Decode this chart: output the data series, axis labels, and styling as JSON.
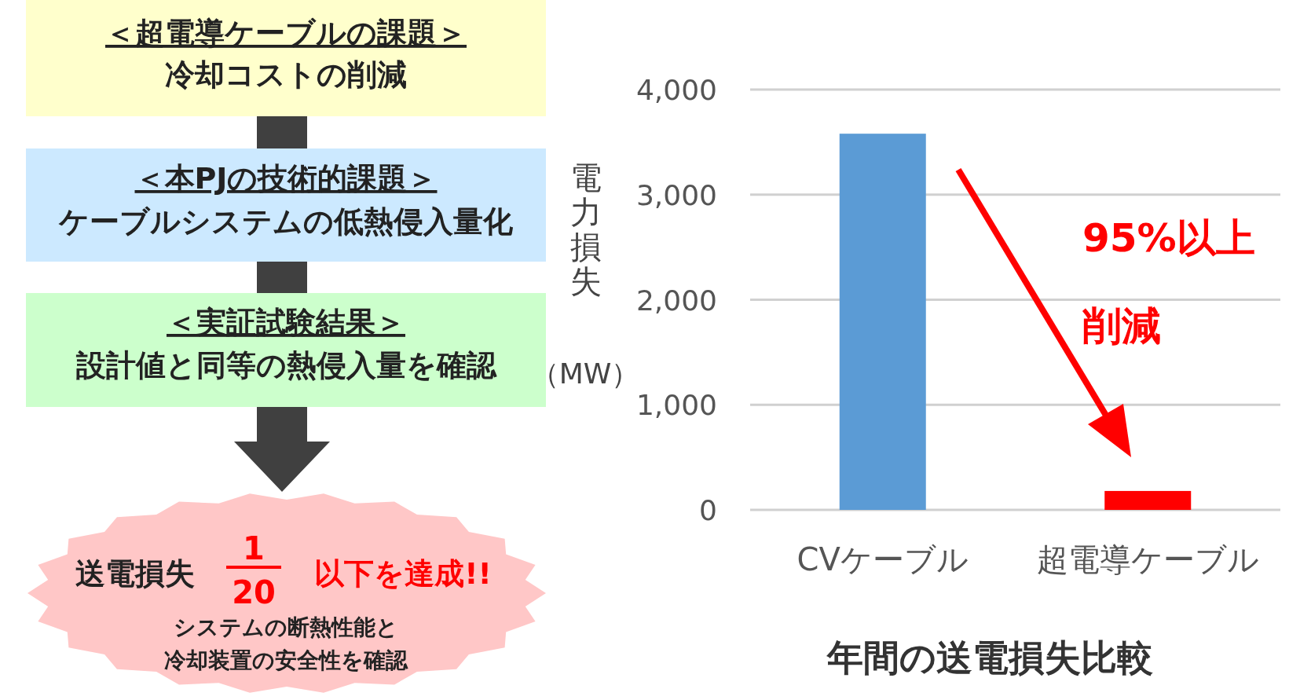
{
  "chart_data": [
    {
      "type": "other",
      "colors": [
        "#ffffcc",
        "#cce9ff",
        "#ccffcc",
        "#ffc7c7"
      ],
      "annotations": [
        "＜超電導ケーブルの課題＞",
        "冷却コストの削減",
        "＜本PJの技術的課題＞",
        "ケーブルシステムの低熱侵入量化",
        "＜実証試験結果＞",
        "設計値と同等の熱侵入量を確認",
        "送電損失",
        "1",
        "20",
        "以下を達成!!",
        "システムの断熱性能と",
        "冷却装置の安全性を確認"
      ]
    },
    {
      "type": "bar",
      "title": "年間の送電損失比較",
      "ylabel": "電力損失（MW）",
      "categories": [
        "CVケーブル",
        "超電導ケーブル"
      ],
      "values": [
        3580,
        180
      ],
      "colors": [
        "#5b9bd5",
        "#ff0000"
      ],
      "ylim": [
        0,
        4000
      ],
      "yticks": [
        0,
        {
          "value": 1000,
          "label": "1,000"
        },
        {
          "value": 2000,
          "label": "2,000"
        },
        {
          "value": 3000,
          "label": "3,000"
        },
        {
          "value": 4000,
          "label": "4,000"
        }
      ],
      "grid": "y",
      "annotations": [
        "95%以上",
        "削減"
      ]
    }
  ]
}
